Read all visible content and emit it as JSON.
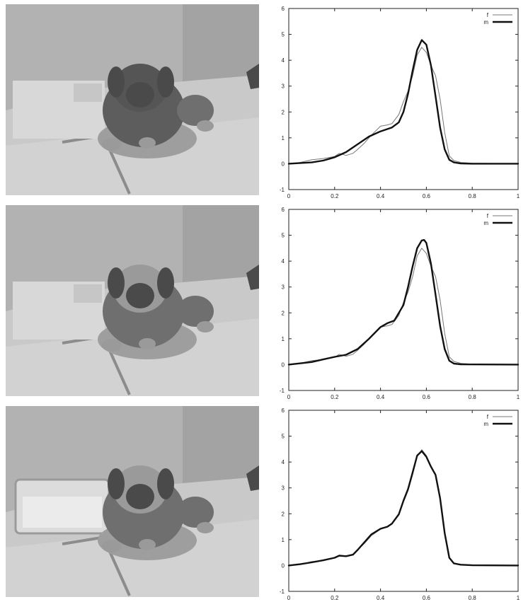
{
  "panels": [
    {
      "image_variant": "coarse"
    },
    {
      "image_variant": "medium"
    },
    {
      "image_variant": "fine"
    }
  ],
  "colors": {
    "series_f": "#777777",
    "series_m": "#111111",
    "wall": "#b2b2b2",
    "floor": "#c9c9c9",
    "puppy_dark": "#4a4a4a",
    "puppy_mid": "#6f6f6f",
    "puppy_light": "#9a9a9a",
    "container": "#dcdcdc"
  },
  "chart_data": [
    {
      "type": "line",
      "xlim": [
        0,
        1
      ],
      "ylim": [
        -1,
        6
      ],
      "xticks": [
        "0",
        "0.2",
        "0.4",
        "0.6",
        "0.8",
        "1"
      ],
      "yticks": [
        "-1",
        "0",
        "1",
        "2",
        "3",
        "4",
        "5",
        "6"
      ],
      "grid": false,
      "legend_position": "top-right",
      "series": [
        {
          "name": "f",
          "x": [
            0,
            0.05,
            0.1,
            0.15,
            0.2,
            0.22,
            0.25,
            0.28,
            0.3,
            0.33,
            0.36,
            0.4,
            0.43,
            0.45,
            0.48,
            0.5,
            0.52,
            0.54,
            0.56,
            0.58,
            0.6,
            0.62,
            0.64,
            0.66,
            0.68,
            0.7,
            0.72,
            0.75,
            0.8,
            1
          ],
          "y": [
            0,
            0.05,
            0.15,
            0.2,
            0.28,
            0.4,
            0.32,
            0.4,
            0.55,
            0.8,
            1.1,
            1.45,
            1.5,
            1.55,
            1.9,
            2.4,
            2.8,
            3.4,
            4.2,
            4.5,
            4.3,
            3.8,
            3.4,
            2.5,
            1.2,
            0.3,
            0.12,
            0.05,
            0.02,
            0
          ]
        },
        {
          "name": "m",
          "x": [
            0,
            0.1,
            0.15,
            0.2,
            0.25,
            0.3,
            0.35,
            0.4,
            0.45,
            0.48,
            0.5,
            0.52,
            0.54,
            0.56,
            0.58,
            0.6,
            0.62,
            0.64,
            0.66,
            0.68,
            0.7,
            0.72,
            0.75,
            0.8,
            1
          ],
          "y": [
            0,
            0.05,
            0.12,
            0.25,
            0.45,
            0.75,
            1.05,
            1.25,
            1.4,
            1.6,
            2.0,
            2.7,
            3.6,
            4.4,
            4.78,
            4.6,
            3.8,
            2.6,
            1.4,
            0.55,
            0.15,
            0.05,
            0.01,
            0,
            0
          ]
        }
      ]
    },
    {
      "type": "line",
      "xlim": [
        0,
        1
      ],
      "ylim": [
        -1,
        6
      ],
      "xticks": [
        "0",
        "0.2",
        "0.4",
        "0.6",
        "0.8",
        "1"
      ],
      "yticks": [
        "-1",
        "0",
        "1",
        "2",
        "3",
        "4",
        "5",
        "6"
      ],
      "grid": false,
      "legend_position": "top-right",
      "series": [
        {
          "name": "f",
          "x": [
            0,
            0.05,
            0.1,
            0.15,
            0.2,
            0.22,
            0.25,
            0.28,
            0.3,
            0.33,
            0.36,
            0.4,
            0.43,
            0.45,
            0.48,
            0.5,
            0.52,
            0.54,
            0.56,
            0.58,
            0.6,
            0.62,
            0.64,
            0.66,
            0.68,
            0.7,
            0.72,
            0.75,
            0.8,
            1
          ],
          "y": [
            0,
            0.05,
            0.15,
            0.2,
            0.28,
            0.4,
            0.32,
            0.4,
            0.55,
            0.8,
            1.1,
            1.45,
            1.5,
            1.55,
            1.9,
            2.4,
            2.8,
            3.4,
            4.2,
            4.5,
            4.3,
            3.8,
            3.4,
            2.5,
            1.2,
            0.3,
            0.12,
            0.05,
            0.02,
            0
          ]
        },
        {
          "name": "m",
          "x": [
            0,
            0.1,
            0.15,
            0.2,
            0.25,
            0.3,
            0.35,
            0.4,
            0.43,
            0.46,
            0.5,
            0.52,
            0.54,
            0.56,
            0.58,
            0.59,
            0.6,
            0.62,
            0.64,
            0.66,
            0.68,
            0.7,
            0.72,
            0.75,
            1
          ],
          "y": [
            0,
            0.1,
            0.2,
            0.3,
            0.38,
            0.6,
            1.0,
            1.45,
            1.6,
            1.7,
            2.3,
            3.0,
            3.8,
            4.5,
            4.8,
            4.82,
            4.7,
            3.9,
            2.7,
            1.5,
            0.6,
            0.15,
            0.04,
            0.01,
            0
          ]
        }
      ]
    },
    {
      "type": "line",
      "xlim": [
        0,
        1
      ],
      "ylim": [
        -1,
        6
      ],
      "xticks": [
        "0",
        "0.2",
        "0.4",
        "0.6",
        "0.8",
        "1"
      ],
      "yticks": [
        "-1",
        "0",
        "1",
        "2",
        "3",
        "4",
        "5",
        "6"
      ],
      "grid": false,
      "legend_position": "top-right",
      "series": [
        {
          "name": "f",
          "x": [
            0,
            0.05,
            0.1,
            0.15,
            0.2,
            0.22,
            0.25,
            0.28,
            0.3,
            0.33,
            0.36,
            0.4,
            0.43,
            0.45,
            0.48,
            0.5,
            0.52,
            0.54,
            0.56,
            0.58,
            0.6,
            0.62,
            0.64,
            0.66,
            0.68,
            0.7,
            0.72,
            0.75,
            0.8,
            1
          ],
          "y": [
            0,
            0.05,
            0.15,
            0.2,
            0.3,
            0.4,
            0.35,
            0.4,
            0.6,
            0.85,
            1.15,
            1.4,
            1.5,
            1.6,
            1.95,
            2.45,
            2.9,
            3.5,
            4.2,
            4.48,
            4.25,
            3.8,
            3.55,
            2.6,
            1.3,
            0.3,
            0.1,
            0.04,
            0.02,
            0
          ]
        },
        {
          "name": "m",
          "x": [
            0,
            0.05,
            0.1,
            0.15,
            0.2,
            0.22,
            0.25,
            0.28,
            0.3,
            0.33,
            0.36,
            0.4,
            0.43,
            0.45,
            0.48,
            0.5,
            0.52,
            0.54,
            0.56,
            0.58,
            0.6,
            0.62,
            0.64,
            0.66,
            0.68,
            0.7,
            0.72,
            0.75,
            0.8,
            1
          ],
          "y": [
            0,
            0.05,
            0.12,
            0.2,
            0.3,
            0.38,
            0.36,
            0.42,
            0.6,
            0.9,
            1.2,
            1.42,
            1.5,
            1.62,
            1.98,
            2.5,
            2.95,
            3.6,
            4.25,
            4.42,
            4.2,
            3.82,
            3.5,
            2.6,
            1.25,
            0.3,
            0.08,
            0.03,
            0.01,
            0
          ]
        }
      ]
    }
  ]
}
